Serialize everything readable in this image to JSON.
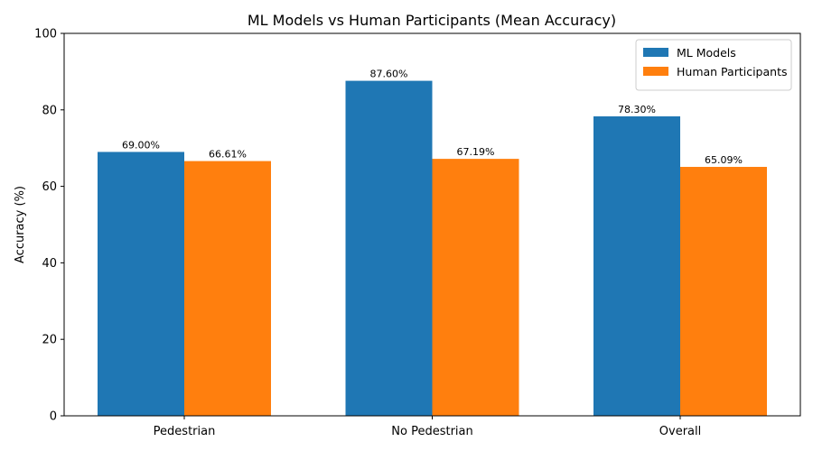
{
  "chart_data": {
    "type": "bar",
    "title": "ML Models vs Human Participants (Mean Accuracy)",
    "xlabel": "",
    "ylabel": "Accuracy (%)",
    "ylim": [
      0,
      100
    ],
    "yticks": [
      0,
      20,
      40,
      60,
      80,
      100
    ],
    "categories": [
      "Pedestrian",
      "No Pedestrian",
      "Overall"
    ],
    "series": [
      {
        "name": "ML Models",
        "color": "#1f77b4",
        "values": [
          69.0,
          87.6,
          78.3
        ],
        "labels": [
          "69.00%",
          "87.60%",
          "78.30%"
        ]
      },
      {
        "name": "Human Participants",
        "color": "#ff7f0e",
        "values": [
          66.61,
          67.19,
          65.09
        ],
        "labels": [
          "66.61%",
          "67.19%",
          "65.09%"
        ]
      }
    ],
    "legend_position": "top-right",
    "grid": false
  }
}
